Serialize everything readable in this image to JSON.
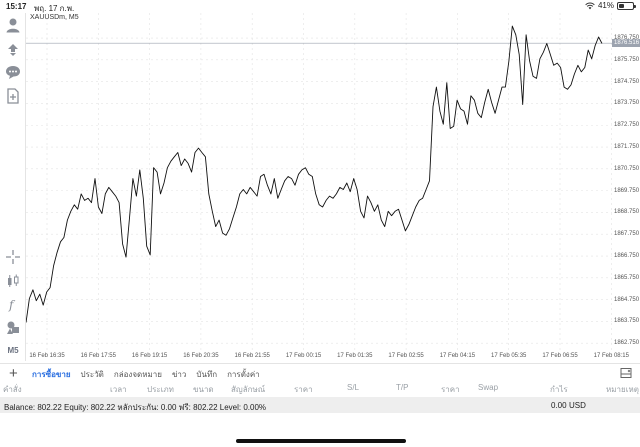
{
  "status_bar": {
    "time": "15:17",
    "date": "พฤ. 17 ก.พ.",
    "battery_text": "41%",
    "battery_level": 0.41
  },
  "left_toolbar": {
    "items": [
      "account-icon",
      "trade-icon",
      "chat-icon",
      "new-document-icon",
      "crosshair-icon",
      "chart-type-icon",
      "indicator-icon",
      "objects-icon"
    ],
    "timeframe_label": "M5"
  },
  "chart": {
    "symbol_label": "XAUUSDm, M5",
    "current_price_label": "1876.516",
    "line_color": "#111111",
    "grid_color": "#e3e3e3",
    "price_line_color": "#9ca3af"
  },
  "price_axis": {
    "ticks": [
      "1876.750",
      "1875.750",
      "1874.750",
      "1873.750",
      "1872.750",
      "1871.750",
      "1870.750",
      "1869.750",
      "1868.750",
      "1867.750",
      "1866.750",
      "1865.750",
      "1864.750",
      "1863.750",
      "1862.750"
    ]
  },
  "time_axis": {
    "ticks": [
      "16 Feb 16:35",
      "16 Feb 17:55",
      "16 Feb 19:15",
      "16 Feb 20:35",
      "16 Feb 21:55",
      "17 Feb 00:15",
      "17 Feb 01:35",
      "17 Feb 02:55",
      "17 Feb 04:15",
      "17 Feb 05:35",
      "17 Feb 06:55",
      "17 Feb 08:15"
    ]
  },
  "chart_data": {
    "type": "line",
    "title": "XAUUSDm, M5",
    "xlabel": "",
    "ylabel": "",
    "x_ticks": [
      "16 Feb 16:35",
      "16 Feb 17:55",
      "16 Feb 19:15",
      "16 Feb 20:35",
      "16 Feb 21:55",
      "17 Feb 00:15",
      "17 Feb 01:35",
      "17 Feb 02:55",
      "17 Feb 04:15",
      "17 Feb 05:35",
      "17 Feb 06:55",
      "17 Feb 08:15"
    ],
    "ylim": [
      1862.3,
      1877.9
    ],
    "grid": true,
    "last_price": 1876.516,
    "series": [
      {
        "values": [
          1863.7,
          1864.8,
          1865.2,
          1864.7,
          1865.0,
          1864.5,
          1865.1,
          1865.3,
          1866.3,
          1866.9,
          1867.4,
          1867.6,
          1868.4,
          1868.8,
          1869.1,
          1868.9,
          1869.6,
          1869.3,
          1869.4,
          1869.2,
          1870.3,
          1869.0,
          1868.7,
          1869.6,
          1869.9,
          1869.7,
          1869.5,
          1869.2,
          1867.3,
          1866.7,
          1868.5,
          1870.3,
          1869.5,
          1870.7,
          1869.4,
          1867.2,
          1866.8,
          1870.8,
          1870.6,
          1869.6,
          1870.1,
          1870.8,
          1871.1,
          1871.3,
          1871.5,
          1870.9,
          1871.2,
          1871.0,
          1870.6,
          1871.5,
          1871.7,
          1871.5,
          1871.3,
          1869.6,
          1868.8,
          1868.1,
          1868.4,
          1867.8,
          1867.7,
          1868.0,
          1868.5,
          1869.0,
          1869.6,
          1869.8,
          1869.6,
          1869.9,
          1869.7,
          1869.5,
          1870.4,
          1870.5,
          1870.0,
          1869.6,
          1870.3,
          1869.4,
          1869.8,
          1870.2,
          1870.4,
          1870.3,
          1870.0,
          1870.5,
          1870.7,
          1870.8,
          1870.5,
          1870.4,
          1869.6,
          1869.1,
          1869.0,
          1869.3,
          1869.5,
          1869.4,
          1869.6,
          1869.9,
          1869.8,
          1870.1,
          1869.7,
          1870.3,
          1869.8,
          1868.8,
          1868.5,
          1869.5,
          1869.2,
          1868.8,
          1869.1,
          1868.4,
          1868.1,
          1868.8,
          1868.6,
          1868.8,
          1868.9,
          1868.4,
          1867.9,
          1868.2,
          1868.6,
          1869.0,
          1869.3,
          1869.4,
          1869.8,
          1870.2,
          1873.6,
          1874.5,
          1873.4,
          1872.8,
          1874.7,
          1872.6,
          1872.7,
          1873.9,
          1873.5,
          1873.4,
          1872.8,
          1874.1,
          1873.9,
          1873.3,
          1873.1,
          1873.8,
          1874.4,
          1873.8,
          1873.3,
          1873.9,
          1874.5,
          1874.5,
          1875.7,
          1877.3,
          1876.9,
          1876.0,
          1873.7,
          1876.9,
          1875.7,
          1875.0,
          1874.9,
          1875.8,
          1876.1,
          1876.5,
          1876.0,
          1875.5,
          1875.6,
          1875.4,
          1874.5,
          1874.4,
          1874.6,
          1875.1,
          1875.5,
          1875.2,
          1875.4,
          1876.2,
          1875.8,
          1876.4,
          1876.8,
          1876.5
        ]
      }
    ]
  },
  "bottom_tabs": {
    "plus_label": "+",
    "items": [
      "การซื้อขาย",
      "ประวัติ",
      "กล่องจดหมาย",
      "ข่าว",
      "บันทึก",
      "การตั้งค่า"
    ],
    "active_index": 0
  },
  "columns": [
    "คำสั่ง",
    "เวลา",
    "ประเภท",
    "ขนาด",
    "สัญลักษณ์",
    "ราคา",
    "S/L",
    "T/P",
    "ราคา",
    "Swap",
    "กำไร",
    "หมายเหตุ"
  ],
  "balance_bar": {
    "text": "Balance: 802.22 Equity: 802.22 หลักประกัน: 0.00 ฟรี: 802.22 Level: 0.00%",
    "profit": "0.00",
    "currency": "USD"
  }
}
